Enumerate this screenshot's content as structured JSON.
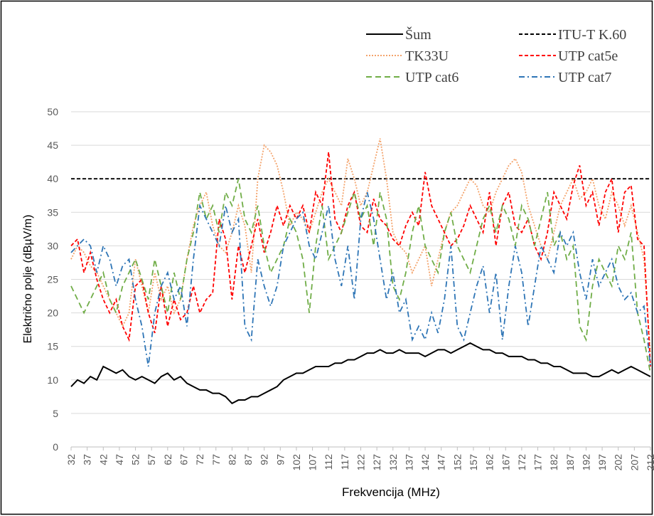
{
  "chart_data": {
    "type": "line",
    "x_label": "Frekvencija (MHz)",
    "y_label": "Električno polje (dBµV/m)",
    "x": [
      32,
      34,
      36,
      38,
      40,
      42,
      44,
      46,
      48,
      50,
      52,
      54,
      56,
      58,
      60,
      62,
      64,
      66,
      68,
      70,
      72,
      74,
      76,
      78,
      80,
      82,
      84,
      86,
      88,
      90,
      92,
      94,
      96,
      98,
      100,
      102,
      104,
      106,
      108,
      110,
      112,
      114,
      116,
      118,
      120,
      122,
      124,
      126,
      128,
      130,
      132,
      134,
      136,
      138,
      140,
      142,
      144,
      146,
      148,
      150,
      152,
      154,
      156,
      158,
      160,
      162,
      164,
      166,
      168,
      170,
      172,
      174,
      176,
      178,
      180,
      182,
      184,
      186,
      188,
      190,
      192,
      194,
      196,
      198,
      200,
      202,
      204,
      206,
      208,
      210,
      212
    ],
    "xlim": [
      32,
      212
    ],
    "xticks": [
      32,
      37,
      42,
      47,
      52,
      57,
      62,
      67,
      72,
      77,
      82,
      87,
      92,
      97,
      102,
      107,
      112,
      117,
      122,
      127,
      132,
      137,
      142,
      147,
      152,
      157,
      162,
      167,
      172,
      177,
      182,
      187,
      192,
      197,
      202,
      207,
      212
    ],
    "ylim": [
      0,
      50
    ],
    "yticks": [
      0,
      5,
      10,
      15,
      20,
      25,
      30,
      35,
      40,
      45,
      50
    ],
    "grid": true,
    "series": [
      {
        "name": "Šum",
        "color": "#000000",
        "dash": "solid",
        "values": [
          9,
          10,
          9.5,
          10.5,
          10,
          12,
          11.5,
          11,
          11.5,
          10.5,
          10,
          10.5,
          10,
          9.5,
          10.5,
          11,
          10,
          10.5,
          9.5,
          9,
          8.5,
          8.5,
          8,
          8,
          7.5,
          6.5,
          7,
          7,
          7.5,
          7.5,
          8,
          8.5,
          9,
          10,
          10.5,
          11,
          11,
          11.5,
          12,
          12,
          12,
          12.5,
          12.5,
          13,
          13,
          13.5,
          14,
          14,
          14.5,
          14,
          14,
          14.5,
          14,
          14,
          14,
          13.5,
          14,
          14.5,
          14.5,
          14,
          14.5,
          15,
          15.5,
          15,
          14.5,
          14.5,
          14,
          14,
          13.5,
          13.5,
          13.5,
          13,
          13,
          12.5,
          12.5,
          12,
          12,
          11.5,
          11,
          11,
          11,
          10.5,
          10.5,
          11,
          11.5,
          11,
          11.5,
          12,
          11.5,
          11,
          10.5
        ]
      },
      {
        "name": "ITU-T K.60",
        "color": "#000000",
        "dash": "dashed",
        "x": [
          32,
          212
        ],
        "values": [
          40,
          40
        ]
      },
      {
        "name": "TK33U",
        "color": "#f4a36b",
        "dash": "dotted",
        "values": [
          28,
          30,
          29,
          27,
          26,
          24,
          22,
          20,
          18,
          20,
          28,
          24,
          20,
          26,
          22,
          24,
          20,
          22,
          28,
          33,
          36,
          38,
          33,
          30,
          29,
          32,
          36,
          33,
          26,
          40,
          45,
          44,
          42,
          38,
          33,
          35,
          34,
          32,
          35,
          38,
          40,
          38,
          36,
          43,
          40,
          36,
          38,
          42,
          46,
          40,
          32,
          30,
          29,
          26,
          28,
          30,
          24,
          28,
          32,
          35,
          36,
          38,
          40,
          39,
          36,
          35,
          38,
          40,
          42,
          43,
          41,
          36,
          33,
          30,
          28,
          32,
          36,
          38,
          40,
          37,
          38,
          40,
          36,
          34,
          38,
          36,
          33,
          36,
          32,
          28,
          14
        ]
      },
      {
        "name": "UTP cat5e",
        "color": "#ff0000",
        "dash": "dashed",
        "values": [
          30,
          31,
          26,
          29,
          25,
          22,
          20,
          22,
          18,
          16,
          24,
          25,
          20,
          17,
          24,
          18,
          22,
          19,
          20,
          24,
          20,
          22,
          23,
          34,
          31,
          22,
          30,
          26,
          30,
          34,
          29,
          32,
          36,
          33,
          36,
          34,
          36,
          32,
          38,
          36,
          44,
          34,
          32,
          36,
          38,
          33,
          32,
          37,
          34,
          33,
          31,
          30,
          33,
          35,
          33,
          41,
          36,
          34,
          32,
          30,
          31,
          33,
          36,
          34,
          32,
          38,
          30,
          36,
          38,
          33,
          32,
          34,
          30,
          28,
          32,
          38,
          36,
          34,
          39,
          42,
          36,
          38,
          33,
          38,
          40,
          32,
          38,
          39,
          31,
          30,
          12
        ]
      },
      {
        "name": "UTP cat6",
        "color": "#70ad47",
        "dash": "longdash",
        "values": [
          24,
          22,
          20,
          22,
          24,
          26,
          22,
          20,
          24,
          26,
          28,
          25,
          22,
          28,
          24,
          20,
          26,
          22,
          28,
          32,
          38,
          34,
          36,
          32,
          38,
          36,
          40,
          34,
          32,
          36,
          30,
          26,
          28,
          30,
          34,
          32,
          28,
          20,
          30,
          36,
          28,
          30,
          32,
          35,
          38,
          34,
          36,
          30,
          38,
          34,
          24,
          22,
          26,
          32,
          36,
          30,
          28,
          26,
          32,
          35,
          30,
          28,
          26,
          30,
          34,
          36,
          32,
          36,
          34,
          30,
          36,
          34,
          30,
          34,
          38,
          30,
          32,
          28,
          30,
          18,
          16,
          24,
          28,
          26,
          24,
          30,
          28,
          32,
          20,
          16,
          11
        ]
      },
      {
        "name": "UTP cat7",
        "color": "#2e75b6",
        "dash": "dashdot",
        "values": [
          29,
          30,
          31,
          30,
          26,
          30,
          28,
          24,
          27,
          28,
          22,
          18,
          12,
          20,
          24,
          26,
          22,
          24,
          18,
          28,
          36,
          34,
          32,
          30,
          36,
          32,
          34,
          18,
          16,
          28,
          24,
          21,
          24,
          30,
          32,
          34,
          35,
          30,
          28,
          32,
          36,
          28,
          24,
          30,
          22,
          34,
          38,
          34,
          28,
          22,
          26,
          20,
          22,
          16,
          18,
          16,
          20,
          17,
          22,
          30,
          18,
          16,
          20,
          24,
          27,
          20,
          26,
          16,
          24,
          30,
          26,
          18,
          24,
          30,
          28,
          26,
          32,
          30,
          32,
          26,
          22,
          28,
          24,
          26,
          28,
          24,
          22,
          23,
          20,
          21,
          12
        ]
      }
    ]
  }
}
